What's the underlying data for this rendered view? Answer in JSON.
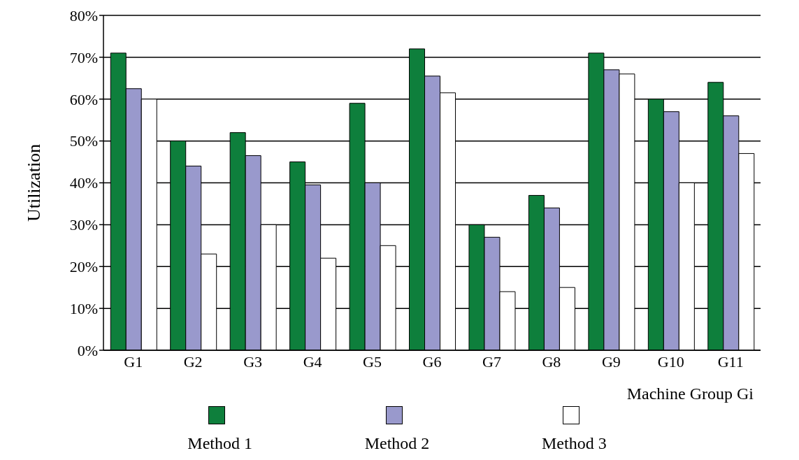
{
  "chart_data": {
    "type": "bar",
    "xlabel": "Machine Group Gi",
    "ylabel": "Utilization",
    "categories": [
      "G1",
      "G2",
      "G3",
      "G4",
      "G5",
      "G6",
      "G7",
      "G8",
      "G9",
      "G10",
      "G11"
    ],
    "series": [
      {
        "name": "Method 1",
        "color": "#0e7f3c",
        "values": [
          71,
          50,
          52,
          45,
          59,
          72,
          30,
          37,
          71,
          60,
          64
        ]
      },
      {
        "name": "Method 2",
        "color": "#9999cc",
        "values": [
          62.5,
          44,
          46.5,
          39.5,
          40,
          65.5,
          27,
          34,
          67,
          57,
          56
        ]
      },
      {
        "name": "Method 3",
        "color": "#ffffff",
        "values": [
          60,
          23,
          30,
          22,
          25,
          61.5,
          14,
          15,
          66,
          40,
          47
        ]
      }
    ],
    "ylim": [
      0,
      80
    ],
    "yticks": [
      {
        "value": 0,
        "label": "0%"
      },
      {
        "value": 10,
        "label": "10%"
      },
      {
        "value": 20,
        "label": "20%"
      },
      {
        "value": 30,
        "label": "30%"
      },
      {
        "value": 40,
        "label": "40%"
      },
      {
        "value": 50,
        "label": "50%"
      },
      {
        "value": 60,
        "label": "60%"
      },
      {
        "value": 70,
        "label": "70%"
      },
      {
        "value": 80,
        "label": "80%"
      }
    ],
    "grid": "y",
    "legend": "bottom"
  }
}
